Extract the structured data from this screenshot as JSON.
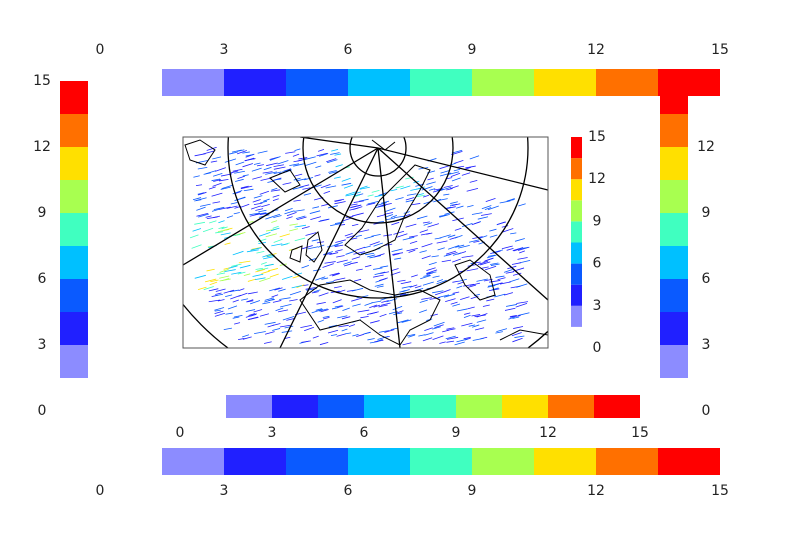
{
  "colorbar": {
    "bounds": [
      1.5,
      3,
      4.5,
      6,
      7.5,
      9,
      10.5,
      12,
      13.5,
      15
    ],
    "colors": [
      "#8c8cff",
      "#2020ff",
      "#0a5aff",
      "#00c0ff",
      "#40ffc0",
      "#a8ff50",
      "#ffe000",
      "#ff7000",
      "#ff0000"
    ],
    "ticks": [
      0,
      3,
      6,
      9,
      12,
      15
    ]
  }
}
